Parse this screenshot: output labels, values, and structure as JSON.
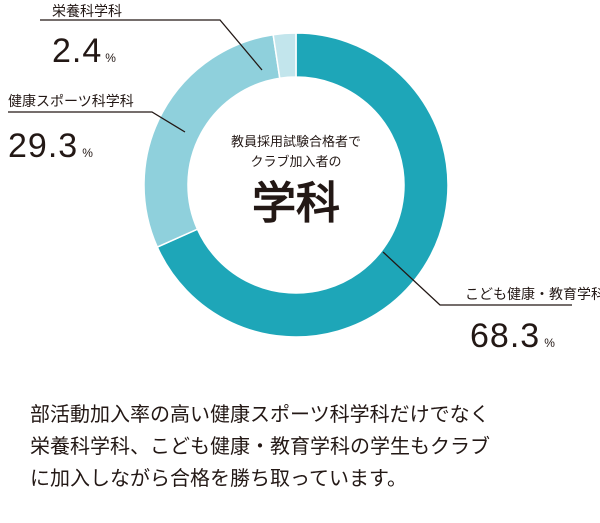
{
  "chart_data": {
    "type": "pie",
    "categories": [
      "こども健康・教育学科",
      "健康スポーツ科学科",
      "栄養科学科"
    ],
    "values": [
      68.3,
      29.3,
      2.4
    ],
    "value_labels": [
      "68.3",
      "29.3",
      "2.4"
    ],
    "unit": "%",
    "colors": [
      "#1ea6b8",
      "#8fd0dc",
      "#c2e5ec"
    ],
    "center_sub": [
      "教員採用試験合格者で",
      "クラブ加入者の"
    ],
    "center_main": "学科"
  },
  "caption": [
    "部活動加入率の高い健康スポーツ科学科だけでなく",
    "栄養科学科、こども健康・教育学科の学生もクラブ",
    "に加入しながら合格を勝ち取っています。"
  ]
}
